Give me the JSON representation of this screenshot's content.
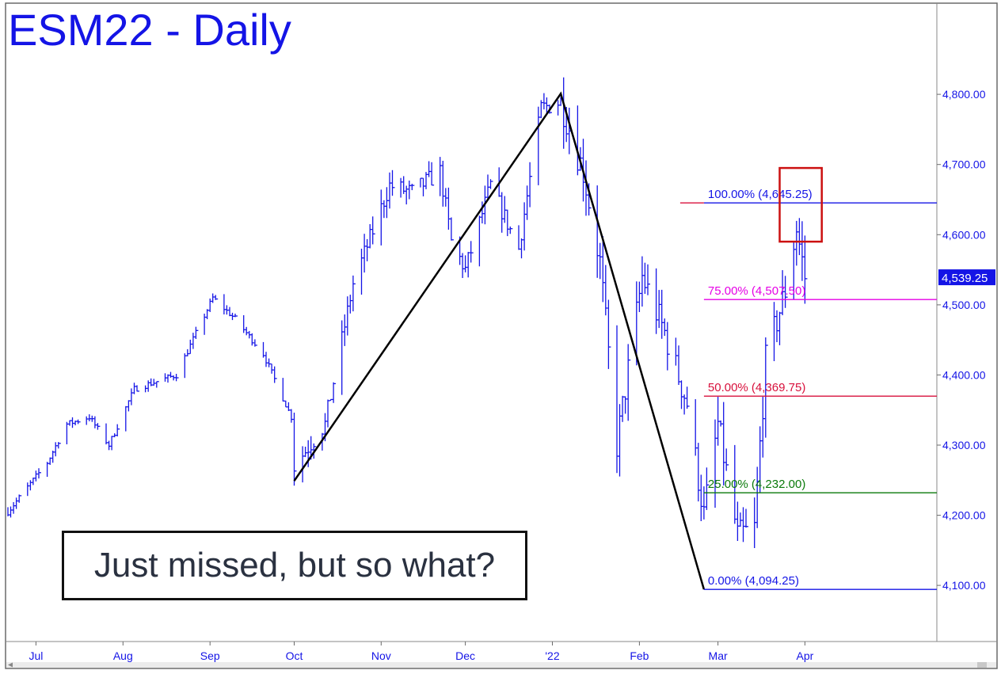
{
  "title": "ESM22 - Daily",
  "annotation": "Just missed, but so what?",
  "last_price_label": "4,539.25",
  "colors": {
    "bars": "#1414e6",
    "axis_text": "#1414e6",
    "fib_100": "#1414e6",
    "fib_75": "#e600e6",
    "fib_50": "#d8103c",
    "fib_25": "#0a7a0a",
    "fib_0": "#1414e6",
    "target_box": "#cc1111",
    "abc_lines": "#000000"
  },
  "chart_data": {
    "type": "bar",
    "subtype": "ohlc",
    "title": "ESM22 - Daily",
    "xlabel": "",
    "ylabel": "",
    "ylim": [
      4020,
      4930
    ],
    "y_ticks": [
      "4,100.00",
      "4,200.00",
      "4,300.00",
      "4,400.00",
      "4,500.00",
      "4,600.00",
      "4,700.00",
      "4,800.00"
    ],
    "y_tick_values": [
      4100,
      4200,
      4300,
      4400,
      4500,
      4600,
      4700,
      4800
    ],
    "x_labels": [
      "Jul",
      "Aug",
      "Sep",
      "Oct",
      "Nov",
      "Dec",
      "'22",
      "Feb",
      "Mar",
      "Apr"
    ],
    "x_label_dates": [
      "2021-07-01",
      "2021-08-01",
      "2021-09-01",
      "2021-10-01",
      "2021-11-01",
      "2021-12-01",
      "2022-01-01",
      "2022-02-01",
      "2022-03-01",
      "2022-04-01"
    ],
    "x_range": [
      "2021-06-21",
      "2022-05-18"
    ],
    "grid": false,
    "anchors": [
      {
        "date": "2021-06-21",
        "price": 4205
      },
      {
        "date": "2021-07-05",
        "price": 4275
      },
      {
        "date": "2021-07-12",
        "price": 4330
      },
      {
        "date": "2021-07-20",
        "price": 4340
      },
      {
        "date": "2021-07-27",
        "price": 4300
      },
      {
        "date": "2021-08-05",
        "price": 4380
      },
      {
        "date": "2021-08-20",
        "price": 4400
      },
      {
        "date": "2021-09-02",
        "price": 4510
      },
      {
        "date": "2021-09-10",
        "price": 4480
      },
      {
        "date": "2021-09-20",
        "price": 4430
      },
      {
        "date": "2021-09-30",
        "price": 4340
      },
      {
        "date": "2021-10-01",
        "price": 4270
      },
      {
        "date": "2021-10-12",
        "price": 4330
      },
      {
        "date": "2021-10-22",
        "price": 4530
      },
      {
        "date": "2021-11-04",
        "price": 4670
      },
      {
        "date": "2021-11-12",
        "price": 4660
      },
      {
        "date": "2021-11-22",
        "price": 4690
      },
      {
        "date": "2021-11-26",
        "price": 4590
      },
      {
        "date": "2021-12-01",
        "price": 4550
      },
      {
        "date": "2021-12-10",
        "price": 4670
      },
      {
        "date": "2021-12-20",
        "price": 4580
      },
      {
        "date": "2021-12-28",
        "price": 4780
      },
      {
        "date": "2022-01-04",
        "price": 4790
      },
      {
        "date": "2022-01-12",
        "price": 4690
      },
      {
        "date": "2022-01-18",
        "price": 4560
      },
      {
        "date": "2022-01-24",
        "price": 4300
      },
      {
        "date": "2022-02-02",
        "price": 4540
      },
      {
        "date": "2022-02-10",
        "price": 4460
      },
      {
        "date": "2022-02-18",
        "price": 4360
      },
      {
        "date": "2022-02-24",
        "price": 4200
      },
      {
        "date": "2022-03-01",
        "price": 4330
      },
      {
        "date": "2022-03-08",
        "price": 4170
      },
      {
        "date": "2022-03-14",
        "price": 4180
      },
      {
        "date": "2022-03-18",
        "price": 4420
      },
      {
        "date": "2022-03-25",
        "price": 4520
      },
      {
        "date": "2022-03-29",
        "price": 4610
      },
      {
        "date": "2022-04-01",
        "price": 4539
      }
    ],
    "abc_pattern": [
      {
        "date": "2021-10-01",
        "price": 4249
      },
      {
        "date": "2022-01-04",
        "price": 4801
      },
      {
        "date": "2022-02-24",
        "price": 4094.25
      }
    ],
    "fib_levels": [
      {
        "label": "100.00%",
        "value_text": "(4,645.25)",
        "value": 4645.25,
        "color_key": "fib_100",
        "start_date": "2022-02-24"
      },
      {
        "label": "75.00%",
        "value_text": "(4,507.50)",
        "value": 4507.5,
        "color_key": "fib_75",
        "start_date": "2022-02-24"
      },
      {
        "label": "50.00%",
        "value_text": "(4,369.75)",
        "value": 4369.75,
        "color_key": "fib_50",
        "start_date": "2022-02-24"
      },
      {
        "label": "25.00%",
        "value_text": "(4,232.00)",
        "value": 4232.0,
        "color_key": "fib_25",
        "start_date": "2022-02-24"
      },
      {
        "label": "0.00%",
        "value_text": "(4,094.25)",
        "value": 4094.25,
        "color_key": "fib_0",
        "start_date": "2022-02-24"
      }
    ],
    "target_box": {
      "date_from": "2022-03-23",
      "date_to": "2022-04-07",
      "price_low": 4590,
      "price_high": 4695
    },
    "last_price": 4539.25
  }
}
